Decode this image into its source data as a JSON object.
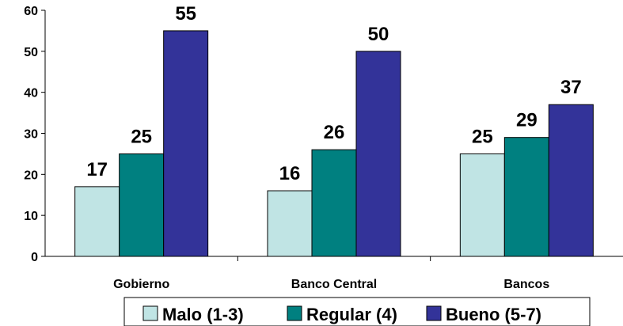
{
  "chart_data": {
    "type": "bar",
    "categories": [
      "Gobierno",
      "Banco Central",
      "Bancos"
    ],
    "series": [
      {
        "name": "Malo (1-3)",
        "values": [
          17,
          16,
          25
        ],
        "color": "#c0e4e4"
      },
      {
        "name": "Regular (4)",
        "values": [
          25,
          26,
          29
        ],
        "color": "#008080"
      },
      {
        "name": "Bueno (5-7)",
        "values": [
          55,
          50,
          37
        ],
        "color": "#333399"
      }
    ],
    "ylim": [
      0,
      60
    ],
    "yticks": [
      0,
      10,
      20,
      30,
      40,
      50,
      60
    ],
    "grid": false,
    "legend": "bottom"
  }
}
